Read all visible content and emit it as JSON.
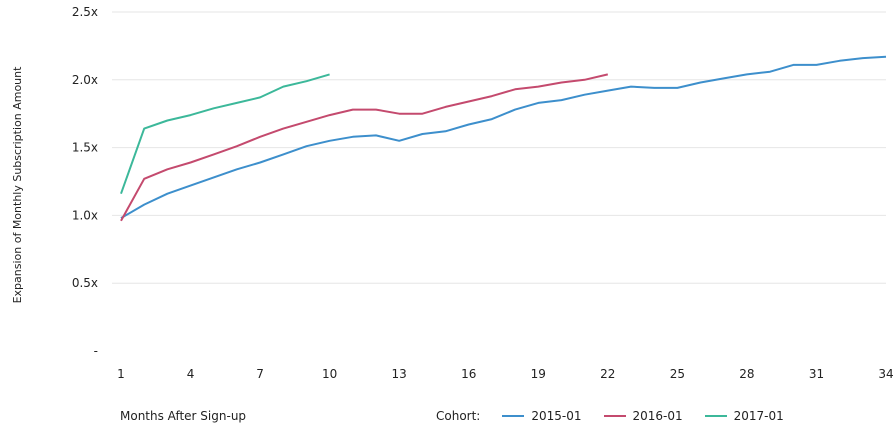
{
  "chart_data": {
    "type": "line",
    "ylabel": "Expansion of Monthly Subscription Amount",
    "xlabel": "Months After Sign-up",
    "ylim": [
      0,
      2.5
    ],
    "xlim": [
      1,
      34
    ],
    "grid": true,
    "y_ticks": [
      {
        "value": 0,
        "label": "-"
      },
      {
        "value": 0.5,
        "label": "0.5x"
      },
      {
        "value": 1.0,
        "label": "1.0x"
      },
      {
        "value": 1.5,
        "label": "1.5x"
      },
      {
        "value": 2.0,
        "label": "2.0x"
      },
      {
        "value": 2.5,
        "label": "2.5x"
      }
    ],
    "x_ticks": [
      1,
      4,
      7,
      10,
      13,
      16,
      19,
      22,
      25,
      28,
      31,
      34
    ],
    "legend_title": "Cohort:",
    "legend_position": "bottom-right",
    "series": [
      {
        "name": "2015-01",
        "color": "#3d8fcc",
        "x": [
          1,
          2,
          3,
          4,
          5,
          6,
          7,
          8,
          9,
          10,
          11,
          12,
          13,
          14,
          15,
          16,
          17,
          18,
          19,
          20,
          21,
          22,
          23,
          24,
          25,
          26,
          27,
          28,
          29,
          30,
          31,
          32,
          33,
          34
        ],
        "values": [
          0.98,
          1.08,
          1.16,
          1.22,
          1.28,
          1.34,
          1.39,
          1.45,
          1.51,
          1.55,
          1.58,
          1.59,
          1.55,
          1.6,
          1.62,
          1.67,
          1.71,
          1.78,
          1.83,
          1.85,
          1.89,
          1.92,
          1.95,
          1.94,
          1.94,
          1.98,
          2.01,
          2.04,
          2.06,
          2.11,
          2.11,
          2.14,
          2.16,
          2.17
        ]
      },
      {
        "name": "2016-01",
        "color": "#c44a6e",
        "x": [
          1,
          2,
          3,
          4,
          5,
          6,
          7,
          8,
          9,
          10,
          11,
          12,
          13,
          14,
          15,
          16,
          17,
          18,
          19,
          20,
          21,
          22
        ],
        "values": [
          0.96,
          1.27,
          1.34,
          1.39,
          1.45,
          1.51,
          1.58,
          1.64,
          1.69,
          1.74,
          1.78,
          1.78,
          1.75,
          1.75,
          1.8,
          1.84,
          1.88,
          1.93,
          1.95,
          1.98,
          2.0,
          2.04
        ]
      },
      {
        "name": "2017-01",
        "color": "#3cb89a",
        "x": [
          1,
          2,
          3,
          4,
          5,
          6,
          7,
          8,
          9,
          10
        ],
        "values": [
          1.16,
          1.64,
          1.7,
          1.74,
          1.79,
          1.83,
          1.87,
          1.95,
          1.99,
          2.04
        ]
      }
    ]
  }
}
